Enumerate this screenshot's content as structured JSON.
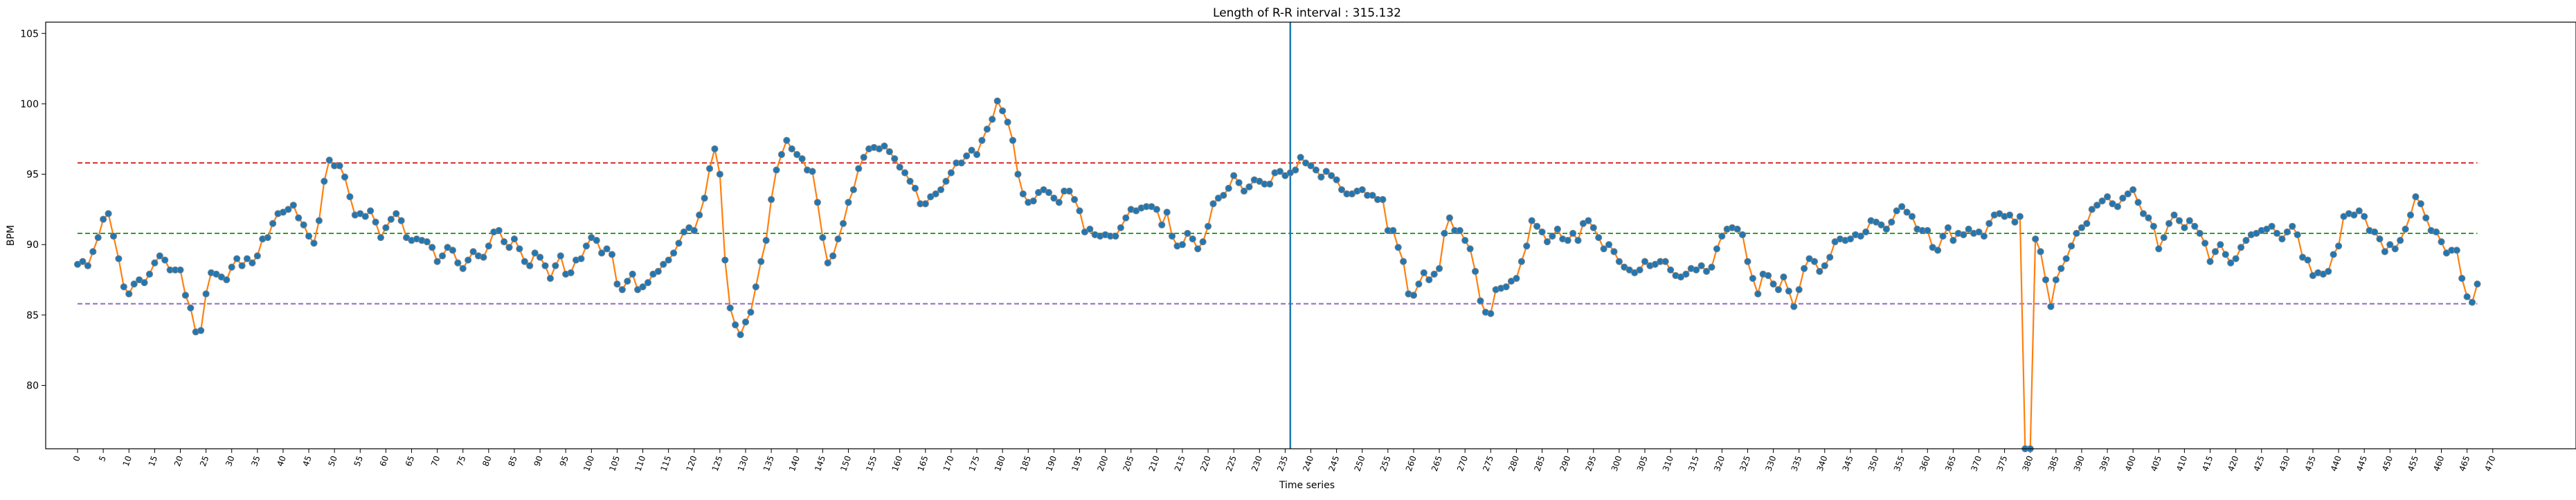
{
  "chart_data": {
    "type": "line",
    "title": "Length of R-R interval : 315.132",
    "xlabel": "Time series",
    "ylabel": "BPM",
    "xlim": [
      -6.2,
      486.2
    ],
    "ylim": [
      75.5,
      105.8
    ],
    "yticks": [
      80,
      85,
      90,
      95,
      100,
      105
    ],
    "xtick_step": 5,
    "xtick_max": 470,
    "grid": false,
    "hlines": [
      {
        "value": 95.8,
        "color": "#d62728",
        "style": "dashed"
      },
      {
        "value": 90.8,
        "color": "#2ca02c",
        "style": "dashed"
      },
      {
        "value": 85.8,
        "color": "#9467bd",
        "style": "dashed"
      }
    ],
    "vline": {
      "value": 236,
      "color": "#1f77b4"
    },
    "series": [
      {
        "line_color": "#ff7f0e",
        "marker_color": "#1f77b4",
        "marker_edge": "#808080"
      }
    ],
    "y": [
      88.6,
      88.8,
      88.5,
      89.5,
      90.5,
      91.8,
      92.2,
      90.6,
      89.0,
      87.0,
      86.5,
      87.2,
      87.5,
      87.3,
      87.9,
      88.7,
      89.2,
      88.9,
      88.2,
      88.2,
      88.2,
      86.4,
      85.5,
      83.8,
      83.9,
      86.5,
      88.0,
      87.9,
      87.7,
      87.5,
      88.4,
      89.0,
      88.5,
      89.0,
      88.7,
      89.2,
      90.4,
      90.5,
      91.5,
      92.2,
      92.3,
      92.5,
      92.8,
      91.9,
      91.4,
      90.6,
      90.1,
      91.7,
      94.5,
      96.0,
      95.6,
      95.6,
      94.8,
      93.4,
      92.1,
      92.2,
      92.0,
      92.4,
      91.6,
      90.5,
      91.2,
      91.8,
      92.2,
      91.7,
      90.5,
      90.3,
      90.4,
      90.3,
      90.2,
      89.8,
      88.8,
      89.2,
      89.8,
      89.6,
      88.7,
      88.3,
      88.9,
      89.5,
      89.2,
      89.1,
      89.9,
      90.9,
      91.0,
      90.2,
      89.8,
      90.4,
      89.7,
      88.8,
      88.5,
      89.4,
      89.1,
      88.5,
      87.6,
      88.5,
      89.2,
      87.9,
      88.0,
      88.9,
      89.0,
      89.9,
      90.5,
      90.3,
      89.4,
      89.7,
      89.3,
      87.2,
      86.8,
      87.4,
      87.9,
      86.8,
      87.0,
      87.3,
      87.9,
      88.1,
      88.6,
      88.9,
      89.4,
      90.1,
      90.9,
      91.2,
      91.0,
      92.1,
      93.3,
      95.4,
      96.8,
      95.0,
      88.9,
      85.5,
      84.3,
      83.6,
      84.5,
      85.2,
      87.0,
      88.8,
      90.3,
      93.2,
      95.3,
      96.4,
      97.4,
      96.8,
      96.4,
      96.1,
      95.3,
      95.2,
      93.0,
      90.5,
      88.7,
      89.2,
      90.4,
      91.5,
      93.0,
      93.9,
      95.4,
      96.2,
      96.8,
      96.9,
      96.8,
      97.0,
      96.6,
      96.1,
      95.5,
      95.1,
      94.5,
      94.0,
      92.9,
      92.9,
      93.4,
      93.6,
      93.9,
      94.5,
      95.1,
      95.8,
      95.8,
      96.3,
      96.7,
      96.4,
      97.4,
      98.2,
      98.9,
      100.2,
      99.5,
      98.7,
      97.4,
      95.0,
      93.6,
      93.0,
      93.1,
      93.7,
      93.9,
      93.7,
      93.3,
      93.0,
      93.8,
      93.8,
      93.2,
      92.4,
      90.9,
      91.1,
      90.7,
      90.6,
      90.7,
      90.6,
      90.6,
      91.2,
      91.9,
      92.5,
      92.4,
      92.6,
      92.7,
      92.7,
      92.5,
      91.4,
      92.3,
      90.6,
      89.9,
      90.0,
      90.8,
      90.4,
      89.7,
      90.2,
      91.3,
      92.9,
      93.3,
      93.5,
      94.0,
      94.9,
      94.4,
      93.8,
      94.1,
      94.6,
      94.5,
      94.3,
      94.3,
      95.1,
      95.2,
      94.9,
      95.1,
      95.3,
      96.2,
      95.8,
      95.6,
      95.3,
      94.8,
      95.2,
      94.9,
      94.6,
      93.9,
      93.6,
      93.6,
      93.8,
      93.9,
      93.5,
      93.5,
      93.2,
      93.2,
      91.0,
      91.0,
      89.8,
      88.8,
      86.5,
      86.4,
      87.2,
      88.0,
      87.5,
      87.9,
      88.3,
      90.8,
      91.9,
      91.0,
      91.0,
      90.3,
      89.7,
      88.1,
      86.0,
      85.2,
      85.1,
      86.8,
      86.9,
      87.0,
      87.4,
      87.6,
      88.8,
      89.9,
      91.7,
      91.3,
      90.9,
      90.2,
      90.6,
      91.1,
      90.4,
      90.3,
      90.8,
      90.3,
      91.5,
      91.7,
      91.2,
      90.5,
      89.7,
      90.0,
      89.5,
      88.8,
      88.4,
      88.2,
      88.0,
      88.2,
      88.8,
      88.5,
      88.6,
      88.8,
      88.8,
      88.2,
      87.8,
      87.7,
      87.9,
      88.3,
      88.2,
      88.5,
      88.1,
      88.4,
      89.7,
      90.6,
      91.1,
      91.2,
      91.1,
      90.7,
      88.8,
      87.6,
      86.5,
      87.9,
      87.8,
      87.2,
      86.8,
      87.7,
      86.7,
      85.6,
      86.8,
      88.3,
      89.0,
      88.8,
      88.1,
      88.5,
      89.1,
      90.2,
      90.4,
      90.3,
      90.4,
      90.7,
      90.6,
      90.9,
      91.7,
      91.6,
      91.4,
      91.1,
      91.6,
      92.4,
      92.7,
      92.3,
      92.0,
      91.1,
      91.0,
      91.0,
      89.8,
      89.6,
      90.6,
      91.2,
      90.3,
      90.8,
      90.7,
      91.1,
      90.8,
      90.9,
      90.6,
      91.5,
      92.1,
      92.2,
      92.0,
      92.1,
      91.6,
      92.0,
      75.5,
      75.5,
      90.4,
      89.5,
      87.5,
      85.6,
      87.5,
      88.3,
      89.0,
      89.9,
      90.8,
      91.2,
      91.5,
      92.5,
      92.8,
      93.1,
      93.4,
      92.9,
      92.7,
      93.3,
      93.6,
      93.9,
      93.0,
      92.2,
      91.9,
      91.3,
      89.7,
      90.5,
      91.5,
      92.1,
      91.7,
      91.2,
      91.7,
      91.3,
      90.8,
      90.1,
      88.8,
      89.5,
      90.0,
      89.3,
      88.7,
      89.0,
      89.8,
      90.3,
      90.7,
      90.8,
      91.0,
      91.1,
      91.3,
      90.8,
      90.4,
      90.9,
      91.3,
      90.7,
      89.1,
      88.9,
      87.8,
      88.0,
      87.9,
      88.1,
      89.3,
      89.9,
      92.0,
      92.2,
      92.1,
      92.4,
      92.0,
      91.0,
      90.9,
      90.4,
      89.5,
      90.0,
      89.7,
      90.3,
      91.1,
      92.1,
      93.4,
      92.9,
      91.9,
      91.0,
      90.9,
      90.2,
      89.4,
      89.6,
      89.6,
      87.6,
      86.3,
      85.9,
      87.2
    ]
  }
}
